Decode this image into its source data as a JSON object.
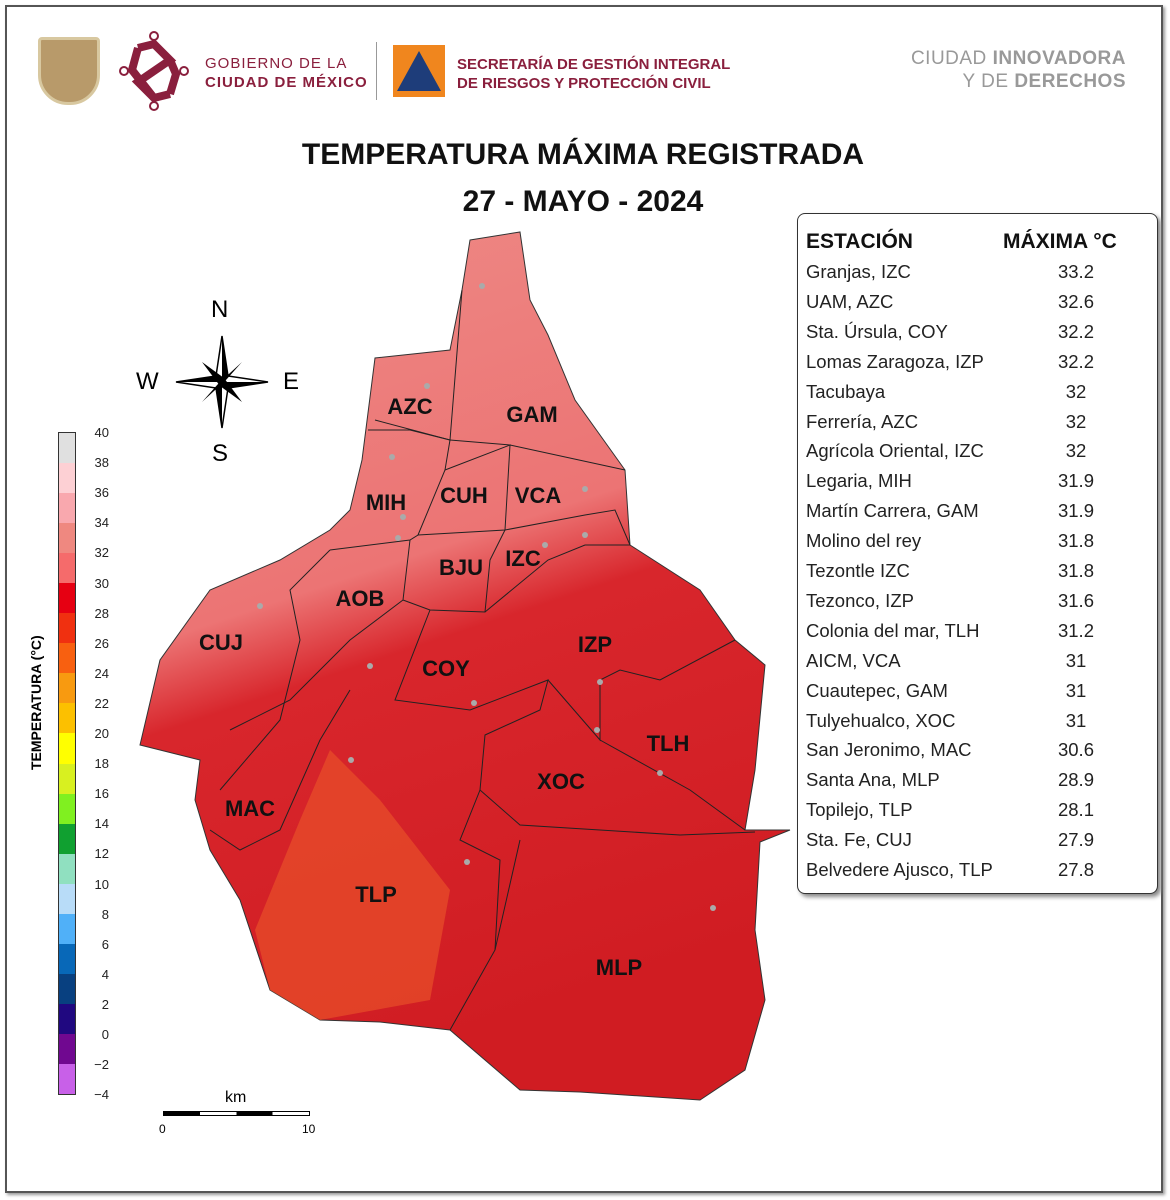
{
  "header": {
    "gob_line1": "GOBIERNO DE LA",
    "gob_line2": "CIUDAD DE MÉXICO",
    "sgirpc_line1": "SECRETARÍA DE GESTIÓN INTEGRAL",
    "sgirpc_line2": "DE RIESGOS Y PROTECCIÓN CIVIL",
    "slogan_line1_a": "CIUDAD ",
    "slogan_line1_b": "INNOVADORA",
    "slogan_line2_a": "Y DE ",
    "slogan_line2_b": "DERECHOS"
  },
  "title": "TEMPERATURA MÁXIMA REGISTRADA",
  "date": "27 - MAYO - 2024",
  "table": {
    "col_station": "ESTACIÓN",
    "col_max": "MÁXIMA °C",
    "rows": [
      {
        "station": "Granjas, IZC",
        "max": "33.2"
      },
      {
        "station": "UAM, AZC",
        "max": "32.6"
      },
      {
        "station": "Sta. Úrsula, COY",
        "max": "32.2"
      },
      {
        "station": "Lomas Zaragoza, IZP",
        "max": "32.2"
      },
      {
        "station": "Tacubaya",
        "max": "32"
      },
      {
        "station": "Ferrería, AZC",
        "max": "32"
      },
      {
        "station": "Agrícola Oriental, IZC",
        "max": "32"
      },
      {
        "station": "Legaria, MIH",
        "max": "31.9"
      },
      {
        "station": "Martín Carrera, GAM",
        "max": "31.9"
      },
      {
        "station": "Molino del rey",
        "max": "31.8"
      },
      {
        "station": "Tezontle IZC",
        "max": "31.8"
      },
      {
        "station": "Tezonco, IZP",
        "max": "31.6"
      },
      {
        "station": "Colonia del mar, TLH",
        "max": "31.2"
      },
      {
        "station": "AICM, VCA",
        "max": "31"
      },
      {
        "station": "Cuautepec, GAM",
        "max": "31"
      },
      {
        "station": "Tulyehualco, XOC",
        "max": "31"
      },
      {
        "station": "San Jeronimo, MAC",
        "max": "30.6"
      },
      {
        "station": "Santa Ana, MLP",
        "max": "28.9"
      },
      {
        "station": "Topilejo, TLP",
        "max": "28.1"
      },
      {
        "station": "Sta. Fe, CUJ",
        "max": "27.9"
      },
      {
        "station": "Belvedere Ajusco, TLP",
        "max": "27.8"
      }
    ]
  },
  "compass": {
    "n": "N",
    "s": "S",
    "e": "E",
    "w": "W"
  },
  "colorbar": {
    "label": "TEMPERATURA (°C)",
    "ticks": [
      "40",
      "38",
      "36",
      "34",
      "32",
      "30",
      "28",
      "26",
      "24",
      "22",
      "20",
      "18",
      "16",
      "14",
      "12",
      "10",
      "8",
      "6",
      "4",
      "2",
      "0",
      "−2",
      "−4"
    ],
    "colors": [
      "#e0e0e0",
      "#fdd0d4",
      "#f9a8ae",
      "#ef8880",
      "#f56b6b",
      "#e60012",
      "#f03010",
      "#f86010",
      "#f89a10",
      "#fcc000",
      "#ffff00",
      "#d8f020",
      "#80f020",
      "#10a030",
      "#90e0c0",
      "#b8dcf8",
      "#50b0f8",
      "#0868b8",
      "#084080",
      "#200880",
      "#700890",
      "#c860e8"
    ]
  },
  "scale": {
    "unit": "km",
    "start": "0",
    "end": "10"
  },
  "boroughs": {
    "AZC": "AZC",
    "GAM": "GAM",
    "MIH": "MIH",
    "CUH": "CUH",
    "VCA": "VCA",
    "BJU": "BJU",
    "IZC": "IZC",
    "AOB": "AOB",
    "CUJ": "CUJ",
    "COY": "COY",
    "IZP": "IZP",
    "TLH": "TLH",
    "XOC": "XOC",
    "MAC": "MAC",
    "TLP": "TLP",
    "MLP": "MLP"
  }
}
